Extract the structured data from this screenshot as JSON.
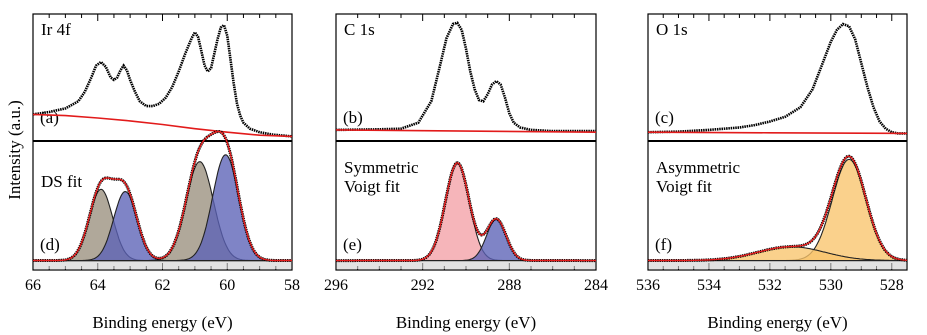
{
  "figure": {
    "ylabel": "Intensity (a.u.)",
    "xlabel": "Binding energy (eV)"
  },
  "chart_data": [
    {
      "type": "line",
      "title": "Ir 4f",
      "xlim": [
        66,
        58
      ],
      "xticks": [
        "66",
        "64",
        "62",
        "60",
        "58"
      ],
      "xlabel": "Binding energy (eV)",
      "top": {
        "label": "(a)",
        "series": [
          {
            "color": "#000000",
            "x": [
              66,
              65.5,
              65,
              64.6,
              64.4,
              64.2,
              64.05,
              63.9,
              63.75,
              63.6,
              63.5,
              63.4,
              63.3,
              63.2,
              63.1,
              63.0,
              62.85,
              62.7,
              62.5,
              62.3,
              62.1,
              61.9,
              61.7,
              61.5,
              61.3,
              61.1,
              61.0,
              60.9,
              60.8,
              60.7,
              60.6,
              60.5,
              60.4,
              60.3,
              60.2,
              60.1,
              60.0,
              59.9,
              59.8,
              59.7,
              59.6,
              59.5,
              59.3,
              59.0,
              58.6,
              58.2,
              58
            ],
            "y": [
              0.19,
              0.21,
              0.24,
              0.3,
              0.38,
              0.5,
              0.6,
              0.63,
              0.59,
              0.5,
              0.48,
              0.5,
              0.56,
              0.6,
              0.56,
              0.48,
              0.38,
              0.3,
              0.26,
              0.26,
              0.28,
              0.33,
              0.42,
              0.55,
              0.7,
              0.83,
              0.88,
              0.84,
              0.72,
              0.6,
              0.55,
              0.58,
              0.7,
              0.82,
              0.92,
              0.94,
              0.85,
              0.65,
              0.45,
              0.28,
              0.18,
              0.12,
              0.07,
              0.04,
              0.02,
              0.01,
              0.005
            ]
          },
          {
            "color": "#e21b1b",
            "x": [
              66,
              65,
              64,
              63,
              62,
              61,
              60,
              59,
              58
            ],
            "y": [
              0.19,
              0.18,
              0.16,
              0.135,
              0.105,
              0.07,
              0.04,
              0.015,
              0.005
            ]
          }
        ]
      },
      "bottom": {
        "label": "(d)",
        "fit_title": "DS fit",
        "components": [
          {
            "color": "#9a8f7d",
            "center": 63.9,
            "height": 0.62,
            "width": 0.36
          },
          {
            "color": "#5b62b6",
            "center": 63.15,
            "height": 0.6,
            "width": 0.36
          },
          {
            "color": "#9a8f7d",
            "center": 60.85,
            "height": 0.86,
            "width": 0.42
          },
          {
            "color": "#5b62b6",
            "center": 60.05,
            "height": 0.92,
            "width": 0.4
          }
        ],
        "envelope_color": "#e21b1b"
      }
    },
    {
      "type": "line",
      "title": "C 1s",
      "xlim": [
        296,
        284
      ],
      "xticks": [
        "296",
        "292",
        "288",
        "284"
      ],
      "xlabel": "Binding energy (eV)",
      "top": {
        "label": "(b)",
        "series": [
          {
            "color": "#000000",
            "x": [
              296,
              294,
              293,
              292.2,
              291.6,
              291.2,
              290.9,
              290.6,
              290.4,
              290.2,
              290.0,
              289.8,
              289.6,
              289.4,
              289.2,
              289.0,
              288.8,
              288.6,
              288.4,
              288.2,
              288.0,
              287.8,
              287.5,
              287.0,
              286,
              285,
              284
            ],
            "y": [
              0.06,
              0.065,
              0.07,
              0.12,
              0.3,
              0.6,
              0.83,
              0.95,
              0.96,
              0.9,
              0.74,
              0.55,
              0.4,
              0.31,
              0.3,
              0.36,
              0.44,
              0.47,
              0.44,
              0.33,
              0.2,
              0.12,
              0.08,
              0.06,
              0.05,
              0.05,
              0.05
            ]
          },
          {
            "color": "#e21b1b",
            "x": [
              296,
              290,
              284
            ],
            "y": [
              0.06,
              0.05,
              0.04
            ]
          }
        ]
      },
      "bottom": {
        "label": "(e)",
        "fit_title_lines": [
          "Symmetric",
          "Voigt fit"
        ],
        "components": [
          {
            "color": "#f4a0a6",
            "center": 290.4,
            "height": 0.85,
            "width": 0.55
          },
          {
            "color": "#5b62b6",
            "center": 288.6,
            "height": 0.36,
            "width": 0.45
          }
        ],
        "envelope_color": "#e21b1b"
      }
    },
    {
      "type": "line",
      "title": "O 1s",
      "xlim": [
        536,
        527.5
      ],
      "xticks": [
        "536",
        "534",
        "532",
        "530",
        "528"
      ],
      "xlabel": "Binding energy (eV)",
      "top": {
        "label": "(c)",
        "series": [
          {
            "color": "#000000",
            "x": [
              536,
              535,
              534,
              533,
              532.5,
              532,
              531.5,
              531,
              530.6,
              530.3,
              530.0,
              529.8,
              529.6,
              529.4,
              529.2,
              529.0,
              528.8,
              528.6,
              528.4,
              528.2,
              528.0,
              527.8,
              527.5
            ],
            "y": [
              0.04,
              0.045,
              0.06,
              0.08,
              0.1,
              0.13,
              0.17,
              0.25,
              0.4,
              0.6,
              0.8,
              0.9,
              0.95,
              0.93,
              0.82,
              0.62,
              0.42,
              0.25,
              0.13,
              0.07,
              0.04,
              0.03,
              0.03
            ]
          },
          {
            "color": "#e21b1b",
            "x": [
              536,
              532,
              527.5
            ],
            "y": [
              0.04,
              0.035,
              0.03
            ]
          }
        ]
      },
      "bottom": {
        "label": "(f)",
        "fit_title_lines": [
          "Asymmetric",
          "Voigt fit"
        ],
        "components": [
          {
            "color": "#f9c46b",
            "center": 529.4,
            "height": 0.88,
            "width": 0.55
          },
          {
            "color": "#f9c46b",
            "center": 531.3,
            "height": 0.12,
            "width": 1.1
          }
        ],
        "envelope_color": "#e21b1b"
      }
    }
  ]
}
